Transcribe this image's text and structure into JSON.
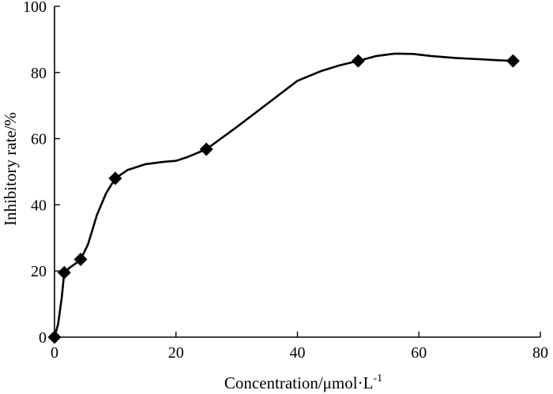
{
  "chart_data": {
    "type": "line",
    "title": "",
    "xlabel": "Concentration/μmol·L",
    "xlabel_superscript": "-1",
    "ylabel": "Inhibitory rate/%",
    "xlim": [
      0,
      80
    ],
    "ylim": [
      0,
      100
    ],
    "x_ticks": [
      0,
      20,
      40,
      60,
      80
    ],
    "y_ticks": [
      0,
      20,
      40,
      60,
      80,
      100
    ],
    "grid": false,
    "marker": "diamond",
    "color": "#000000",
    "series": [
      {
        "name": "Inhibitory rate",
        "x": [
          0,
          1.6,
          4.3,
          10,
          25,
          50,
          75.5
        ],
        "values": [
          0,
          19.5,
          23.5,
          48,
          56.8,
          83.5,
          83.5
        ]
      }
    ],
    "curve": {
      "x": [
        0,
        0.6,
        1.2,
        1.6,
        2.5,
        3.5,
        4.3,
        5.5,
        7.0,
        8.5,
        10,
        12,
        15,
        18,
        20,
        22,
        25,
        30,
        35,
        40,
        44,
        47,
        50,
        53,
        56,
        59,
        62,
        66,
        70,
        73,
        75.5
      ],
      "y": [
        0,
        4,
        12,
        19.5,
        21,
        22.3,
        23.5,
        28,
        37,
        43.5,
        48,
        50.5,
        52.3,
        53.0,
        53.3,
        54.5,
        56.8,
        63.5,
        70.5,
        77.5,
        80.5,
        82.2,
        83.5,
        85.0,
        85.7,
        85.6,
        85.0,
        84.4,
        84.0,
        83.7,
        83.5
      ]
    }
  }
}
